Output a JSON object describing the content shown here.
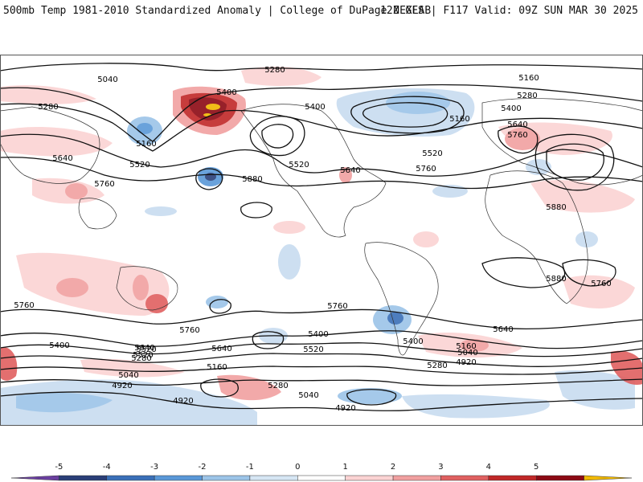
{
  "header": {
    "left": "500mb Temp 1981-2010 Standardized Anomaly | College of DuPage NEXLAB",
    "right": "12Z GFS | F117 Valid: 09Z SUN MAR 30 2025"
  },
  "colorbar": {
    "ticks": [
      "-5",
      "-4",
      "-3",
      "-2",
      "-1",
      "0",
      "1",
      "2",
      "3",
      "4",
      "5"
    ],
    "colors": [
      "#6a3fa0",
      "#2a3f78",
      "#3a6fb8",
      "#5a98d8",
      "#9cc4e8",
      "#d6e6f4",
      "#ffffff",
      "#fbd3d3",
      "#f1a0a0",
      "#e06060",
      "#c02828",
      "#8c0a14",
      "#f0b800"
    ]
  },
  "map": {
    "height_labels": [
      "5040",
      "5280",
      "5400",
      "5160",
      "5280",
      "5400",
      "5160",
      "5280",
      "5400",
      "5640",
      "5760",
      "5160",
      "5640",
      "5520",
      "5520",
      "5640",
      "5760",
      "5520",
      "5760",
      "5880",
      "5880",
      "5880",
      "5760",
      "5760",
      "5760",
      "5760",
      "5640",
      "5520",
      "5400",
      "5280",
      "5640",
      "5520",
      "5400",
      "5160",
      "5040",
      "4920",
      "5400",
      "5640",
      "5520",
      "5160",
      "5280",
      "5040",
      "4920",
      "5280",
      "5040",
      "4920",
      "4920"
    ]
  }
}
